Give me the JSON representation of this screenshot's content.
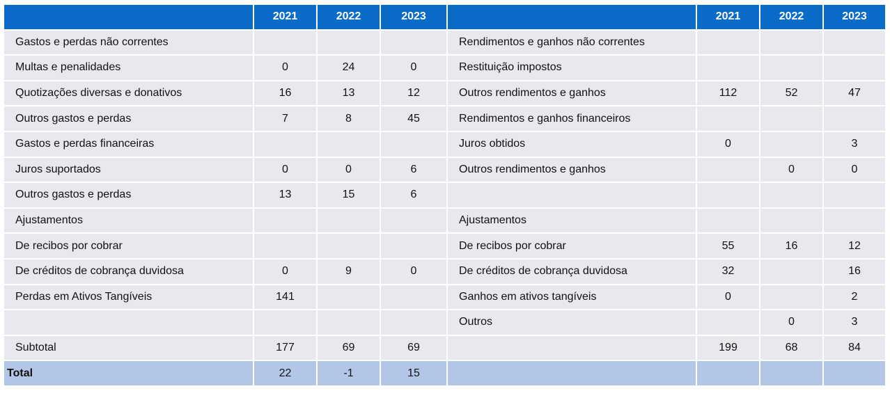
{
  "header": {
    "years_left": [
      "2021",
      "2022",
      "2023"
    ],
    "years_right": [
      "2021",
      "2022",
      "2023"
    ]
  },
  "rows": [
    {
      "left_label": "Gastos e perdas não correntes",
      "left_values": [
        "",
        "",
        ""
      ],
      "right_label": "Rendimentos e ganhos não correntes",
      "right_values": [
        "",
        "",
        ""
      ]
    },
    {
      "left_label": "Multas e penalidades",
      "left_values": [
        "0",
        "24",
        "0"
      ],
      "right_label": "Restituição impostos",
      "right_values": [
        "",
        "",
        ""
      ]
    },
    {
      "left_label": "Quotizações diversas e donativos",
      "left_values": [
        "16",
        "13",
        "12"
      ],
      "right_label": "Outros rendimentos e ganhos",
      "right_values": [
        "112",
        "52",
        "47"
      ]
    },
    {
      "left_label": "Outros gastos e perdas",
      "left_values": [
        "7",
        "8",
        "45"
      ],
      "right_label": "Rendimentos e ganhos financeiros",
      "right_values": [
        "",
        "",
        ""
      ]
    },
    {
      "left_label": "Gastos e perdas financeiras",
      "left_values": [
        "",
        "",
        ""
      ],
      "right_label": "Juros obtidos",
      "right_values": [
        "0",
        "",
        "3"
      ]
    },
    {
      "left_label": "Juros suportados",
      "left_values": [
        "0",
        "0",
        "6"
      ],
      "right_label": "Outros rendimentos e ganhos",
      "right_values": [
        "",
        "0",
        "0"
      ]
    },
    {
      "left_label": "Outros gastos e perdas",
      "left_values": [
        "13",
        "15",
        "6"
      ],
      "right_label": "",
      "right_values": [
        "",
        "",
        ""
      ]
    },
    {
      "left_label": "Ajustamentos",
      "left_values": [
        "",
        "",
        ""
      ],
      "right_label": "Ajustamentos",
      "right_values": [
        "",
        "",
        ""
      ]
    },
    {
      "left_label": "De recibos por cobrar",
      "left_values": [
        "",
        "",
        ""
      ],
      "right_label": "De recibos por cobrar",
      "right_values": [
        "55",
        "16",
        "12"
      ]
    },
    {
      "left_label": "De créditos de cobrança duvidosa",
      "left_values": [
        "0",
        "9",
        "0"
      ],
      "right_label": "De créditos de cobrança duvidosa",
      "right_values": [
        "32",
        "",
        "16"
      ]
    },
    {
      "left_label": "Perdas em Ativos Tangíveis",
      "left_values": [
        "141",
        "",
        ""
      ],
      "right_label": "Ganhos em ativos tangíveis",
      "right_values": [
        "0",
        "",
        "2"
      ]
    },
    {
      "left_label": "",
      "left_values": [
        "",
        "",
        ""
      ],
      "right_label": "Outros",
      "right_values": [
        "",
        "0",
        "3"
      ]
    },
    {
      "left_label": "Subtotal",
      "left_values": [
        "177",
        "69",
        "69"
      ],
      "right_label": "",
      "right_values": [
        "199",
        "68",
        "84"
      ]
    }
  ],
  "total": {
    "label": "Total",
    "values": [
      "22",
      "-1",
      "15"
    ]
  }
}
